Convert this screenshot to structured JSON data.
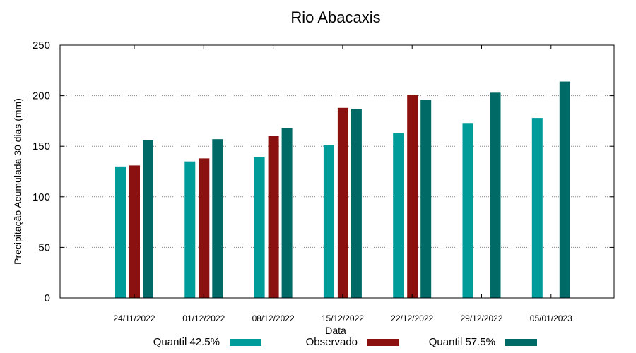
{
  "chart_data": {
    "type": "bar",
    "title": "Rio Abacaxis",
    "xlabel": "Data",
    "ylabel": "Precipitação Acumulada 30 dias (mm)",
    "ylim": [
      0,
      250
    ],
    "yticks": [
      0,
      50,
      100,
      150,
      200,
      250
    ],
    "grid": true,
    "legend_position": "bottom",
    "categories": [
      "24/11/2022",
      "01/12/2022",
      "08/12/2022",
      "15/12/2022",
      "22/12/2022",
      "29/12/2022",
      "05/01/2023"
    ],
    "series": [
      {
        "name": "Quantil 42.5%",
        "color": "#009c99",
        "values": [
          130,
          135,
          139,
          151,
          163,
          173,
          178
        ]
      },
      {
        "name": "Observado",
        "color": "#8b1010",
        "values": [
          131,
          138,
          160,
          188,
          201,
          null,
          null
        ]
      },
      {
        "name": "Quantil 57.5%",
        "color": "#006b66",
        "values": [
          156,
          157,
          168,
          187,
          196,
          203,
          214
        ]
      }
    ]
  }
}
